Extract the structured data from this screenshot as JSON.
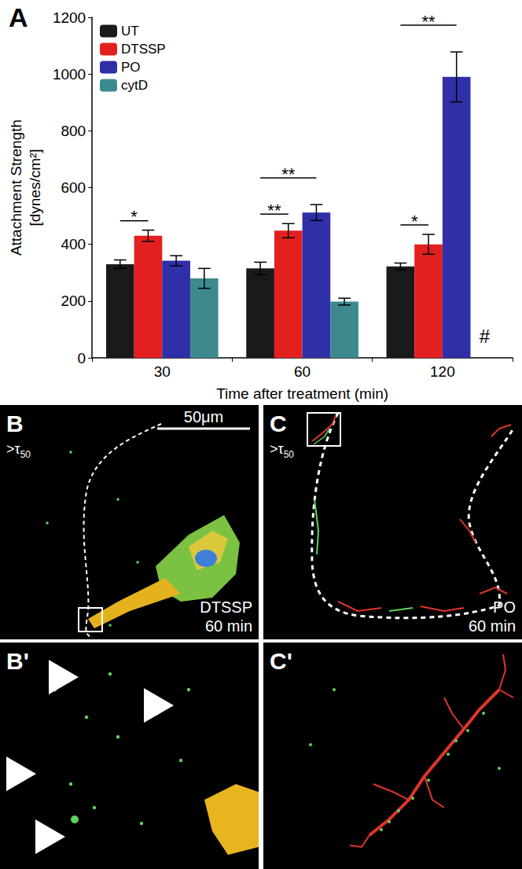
{
  "chart_data": {
    "type": "bar",
    "panel_label": "A",
    "x_label": "Time after treatment (min)",
    "y_label": "Attachment Strength\n[dynes/cm²]",
    "categories": [
      "30",
      "60",
      "120"
    ],
    "series": [
      {
        "name": "UT",
        "color": "#1a1a1a",
        "values": [
          330,
          315,
          322
        ],
        "errors": [
          15,
          22,
          12
        ]
      },
      {
        "name": "DTSSP",
        "color": "#e3201f",
        "values": [
          430,
          448,
          400
        ],
        "errors": [
          20,
          25,
          35
        ]
      },
      {
        "name": "PO",
        "color": "#2f2fa8",
        "values": [
          342,
          512,
          990
        ],
        "errors": [
          18,
          28,
          88
        ]
      },
      {
        "name": "cytD",
        "color": "#3c8a8e",
        "values": [
          280,
          198,
          null
        ],
        "errors": [
          35,
          12,
          null
        ]
      }
    ],
    "significance": [
      {
        "category": "30",
        "from": "UT",
        "to": "DTSSP",
        "label": "*"
      },
      {
        "category": "60",
        "from": "UT",
        "to": "DTSSP",
        "label": "**"
      },
      {
        "category": "60",
        "from": "UT",
        "to": "PO",
        "label": "**"
      },
      {
        "category": "120",
        "from": "UT",
        "to": "DTSSP",
        "label": "*"
      },
      {
        "category": "120",
        "from": "UT",
        "to": "PO",
        "label": "**"
      }
    ],
    "annotations": [
      {
        "category": "120",
        "series": "cytD",
        "label": "#"
      }
    ],
    "ylim": [
      0,
      1200
    ],
    "yticks": [
      0,
      200,
      400,
      600,
      800,
      1000,
      1200
    ],
    "grid": false,
    "legend": "upper left"
  },
  "panels": [
    {
      "label": "B",
      "scale_bar": "50μm",
      "annotation": {
        "text": ">τ",
        "subscript": "50"
      },
      "caption": [
        "DTSSP",
        "60 min"
      ]
    },
    {
      "label": "C",
      "annotation": {
        "text": ">τ",
        "subscript": "50"
      },
      "caption": [
        "PO",
        "60 min"
      ]
    },
    {
      "label": "B'"
    },
    {
      "label": "C'"
    }
  ]
}
